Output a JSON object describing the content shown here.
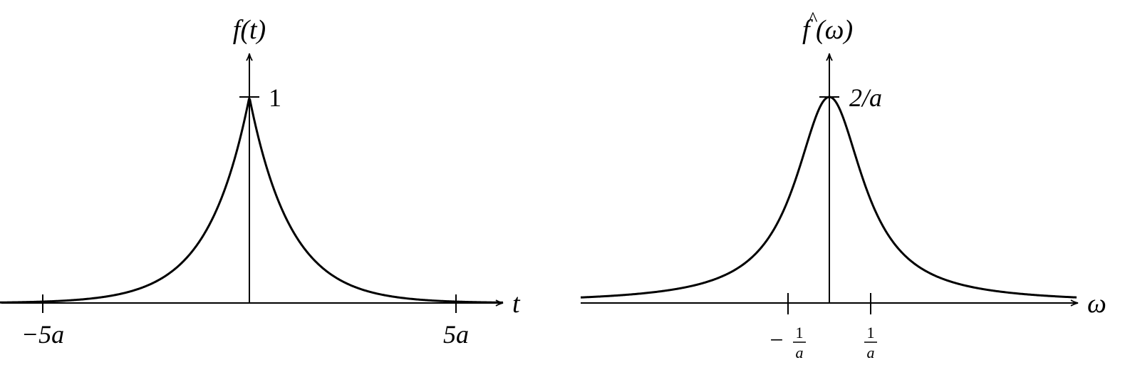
{
  "chart_data": [
    {
      "type": "line",
      "ylabel": "f(t)",
      "xlabel": "t",
      "x_tick_labels": [
        "−5a",
        "5a"
      ],
      "x_ticks": [
        -5,
        5
      ],
      "y_tick_label": "1",
      "y_tick": 1,
      "xlim": [
        -6,
        6.2
      ],
      "ylim": [
        0,
        1
      ],
      "function": "exp(-|t|/a), a = 1",
      "series": [
        {
          "x": [
            -6,
            -5,
            -4,
            -3,
            -2.5,
            -2,
            -1.5,
            -1,
            -0.5,
            0,
            0.5,
            1,
            1.5,
            2,
            2.5,
            3,
            4,
            5,
            6
          ],
          "values": [
            0.0025,
            0.0067,
            0.0183,
            0.0498,
            0.0821,
            0.1353,
            0.2231,
            0.3679,
            0.6065,
            1,
            0.6065,
            0.3679,
            0.2231,
            0.1353,
            0.0821,
            0.0498,
            0.0183,
            0.0067,
            0.0025
          ]
        }
      ],
      "grid": false
    },
    {
      "type": "line",
      "ylabel_base": "f",
      "ylabel_hat": "^",
      "ylabel_arg": "(ω)",
      "xlabel": "ω",
      "x_tick_labels": [
        {
          "sign": "−",
          "num": "1",
          "den": "a"
        },
        {
          "sign": "",
          "num": "1",
          "den": "a"
        }
      ],
      "x_ticks": [
        -1,
        1
      ],
      "y_tick_label": "2/a",
      "y_tick": 2,
      "xlim": [
        -6,
        6
      ],
      "ylim": [
        0,
        2
      ],
      "function": "2a/(1 + a²ω²), a = 1",
      "series": [
        {
          "x": [
            -6,
            -5,
            -4,
            -3,
            -2.5,
            -2,
            -1.5,
            -1,
            -0.75,
            -0.5,
            -0.25,
            0,
            0.25,
            0.5,
            0.75,
            1,
            1.5,
            2,
            2.5,
            3,
            4,
            5,
            6
          ],
          "values": [
            0.054,
            0.077,
            0.118,
            0.2,
            0.276,
            0.4,
            0.615,
            1.0,
            1.28,
            1.6,
            1.882,
            2.0,
            1.882,
            1.6,
            1.28,
            1.0,
            0.615,
            0.4,
            0.276,
            0.2,
            0.118,
            0.077,
            0.054
          ]
        }
      ],
      "grid": false
    }
  ]
}
